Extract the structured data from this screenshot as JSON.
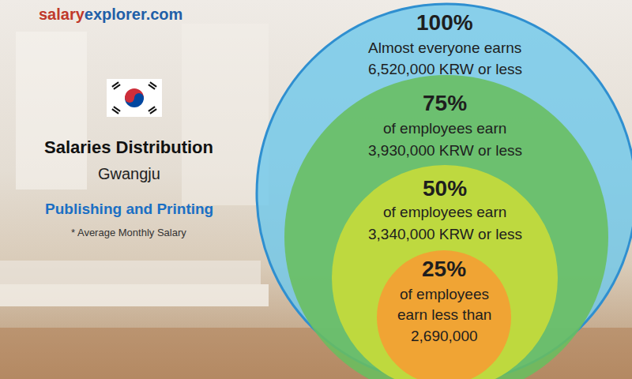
{
  "chart_data": {
    "type": "nested_circles",
    "source": [
      "salary",
      "explorer.com"
    ],
    "title": "Salaries Distribution",
    "subtitle": "Gwangju",
    "category": "Publishing and Printing",
    "note": "* Average Monthly Salary",
    "levels": [
      {
        "percent": {
          "value": 100,
          "label": "100%"
        },
        "text": [
          "Almost everyone earns"
        ],
        "amount": {
          "value": 6520000,
          "label": "6,520,000 KRW or less"
        }
      },
      {
        "percent": {
          "value": 75,
          "label": "75%"
        },
        "text": [
          "of employees earn"
        ],
        "amount": {
          "value": 3930000,
          "label": "3,930,000 KRW or less"
        }
      },
      {
        "percent": {
          "value": 50,
          "label": "50%"
        },
        "text": [
          "of employees earn"
        ],
        "amount": {
          "value": 3340000,
          "label": "3,340,000 KRW or less"
        }
      },
      {
        "percent": {
          "value": 25,
          "label": "25%"
        },
        "text": [
          "of employees",
          "earn less than"
        ],
        "amount": {
          "value": 2690000,
          "label": "2,690,000"
        }
      }
    ]
  }
}
